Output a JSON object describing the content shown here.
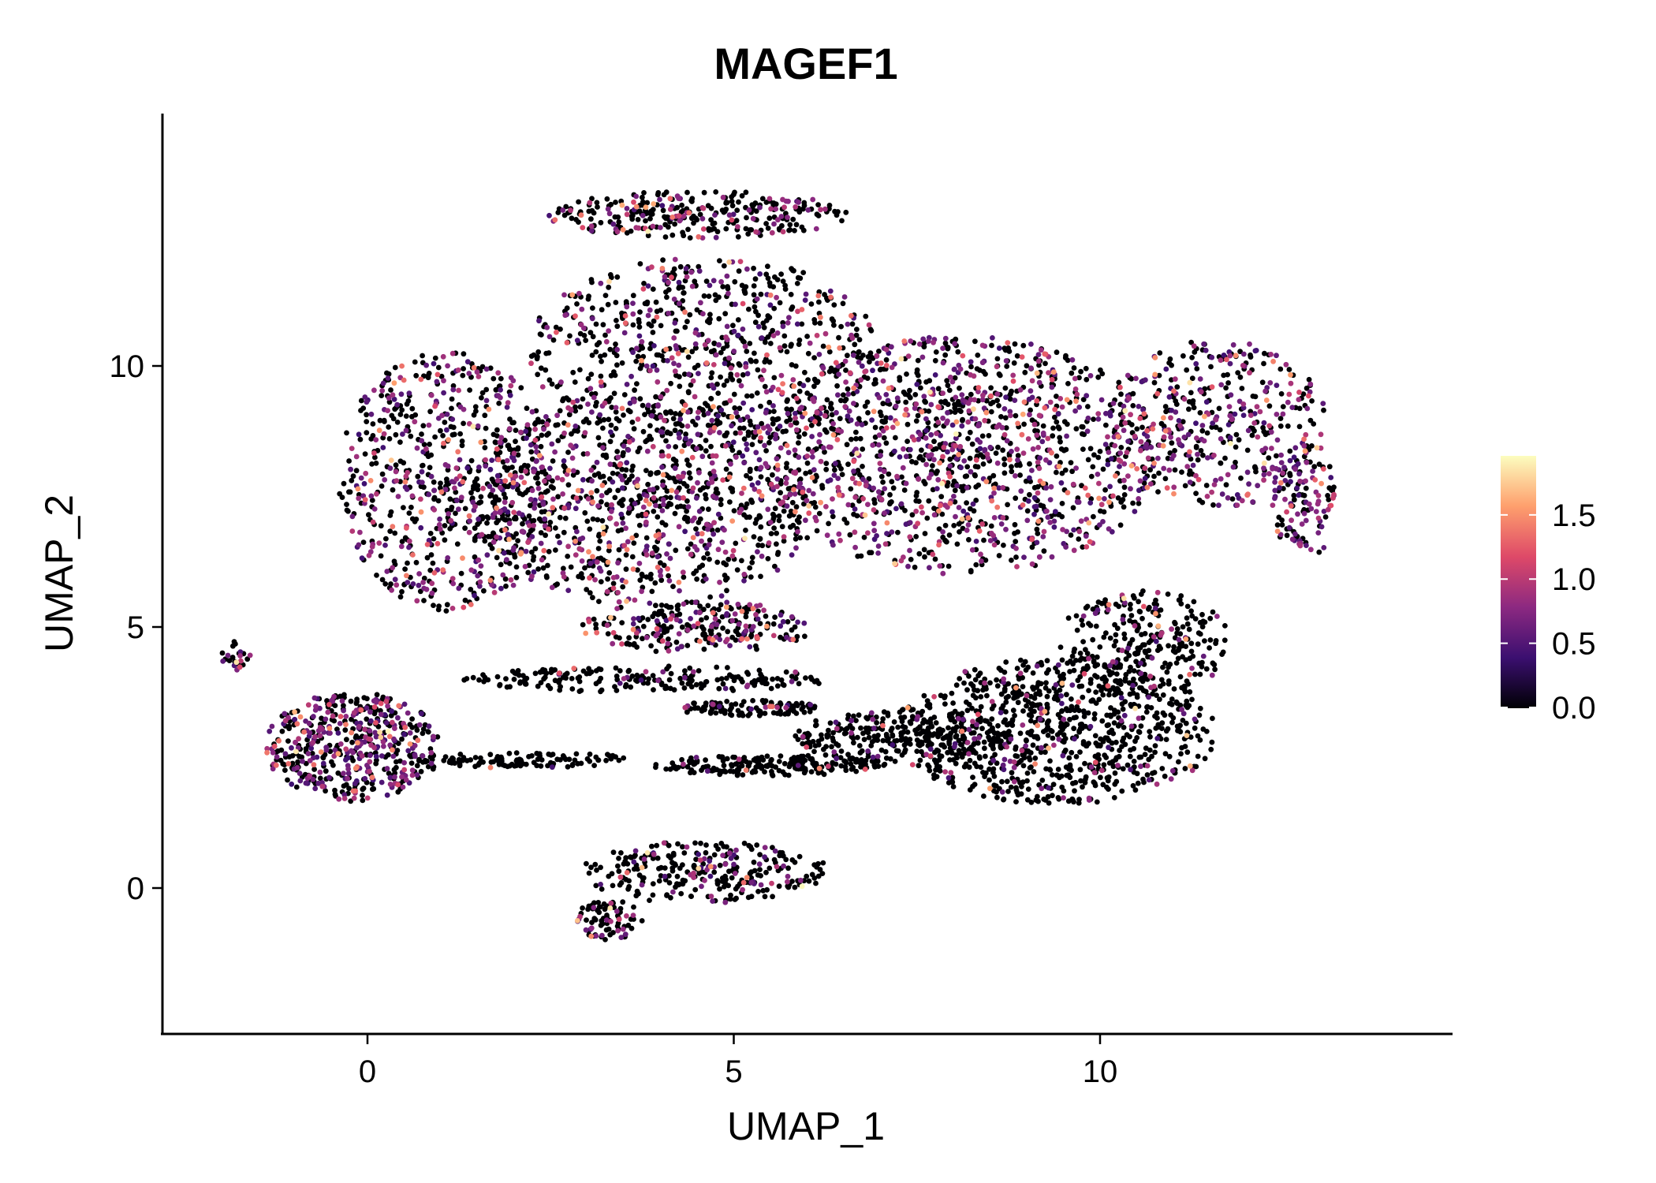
{
  "chart_data": {
    "type": "scatter",
    "title": "MAGEF1",
    "xlabel": "UMAP_1",
    "ylabel": "UMAP_2",
    "xlim": [
      -2.8,
      14.8
    ],
    "ylim": [
      -2.8,
      14.8
    ],
    "x_ticks": [
      {
        "value": 0,
        "label": "0"
      },
      {
        "value": 5,
        "label": "5"
      },
      {
        "value": 10,
        "label": "10"
      }
    ],
    "y_ticks": [
      {
        "value": 0,
        "label": "0"
      },
      {
        "value": 5,
        "label": "5"
      },
      {
        "value": 10,
        "label": "10"
      }
    ],
    "grid": false,
    "legend": {
      "placement": "right",
      "type": "colorbar",
      "range": [
        0,
        1.96
      ],
      "ticks": [
        {
          "value": 0.0,
          "label": "0.0"
        },
        {
          "value": 0.5,
          "label": "0.5"
        },
        {
          "value": 1.0,
          "label": "1.0"
        },
        {
          "value": 1.5,
          "label": "1.5"
        }
      ],
      "colormap": [
        "#000004",
        "#3b0f70",
        "#8c2981",
        "#de4968",
        "#fe9f6d",
        "#fcfdbf"
      ]
    },
    "point_generation_note": "clusters approximate cell density in UMAP coordinates",
    "seed": 12345,
    "clusters": [
      {
        "name": "left-lobe",
        "cx": 1.1,
        "cy": 7.8,
        "rx": 1.5,
        "ry": 2.5,
        "n": 700,
        "expr_frac": 0.4
      },
      {
        "name": "top-arc",
        "cx": 4.5,
        "cy": 12.9,
        "rx": 2.1,
        "ry": 0.45,
        "n": 300,
        "expr_frac": 0.3
      },
      {
        "name": "upper-middle",
        "cx": 4.6,
        "cy": 10.3,
        "rx": 2.4,
        "ry": 1.8,
        "n": 750,
        "expr_frac": 0.33
      },
      {
        "name": "center",
        "cx": 3.8,
        "cy": 7.4,
        "rx": 2.4,
        "ry": 2.0,
        "n": 1000,
        "expr_frac": 0.38
      },
      {
        "name": "right-center",
        "cx": 8.1,
        "cy": 8.3,
        "rx": 2.7,
        "ry": 2.3,
        "n": 1300,
        "expr_frac": 0.45
      },
      {
        "name": "far-right",
        "cx": 11.6,
        "cy": 8.9,
        "rx": 1.5,
        "ry": 1.6,
        "n": 420,
        "expr_frac": 0.48
      },
      {
        "name": "right-tip",
        "cx": 12.8,
        "cy": 7.4,
        "rx": 0.45,
        "ry": 1.1,
        "n": 120,
        "expr_frac": 0.5
      },
      {
        "name": "lower-middle",
        "cx": 4.5,
        "cy": 5.0,
        "rx": 1.6,
        "ry": 0.5,
        "n": 260,
        "expr_frac": 0.35
      },
      {
        "name": "bottom-right",
        "cx": 9.4,
        "cy": 3.0,
        "rx": 2.2,
        "ry": 1.4,
        "n": 900,
        "expr_frac": 0.12
      },
      {
        "name": "bottom-right-upper",
        "cx": 10.6,
        "cy": 4.7,
        "rx": 1.2,
        "ry": 1.0,
        "n": 280,
        "expr_frac": 0.12
      },
      {
        "name": "band-1",
        "cx": 3.8,
        "cy": 4.0,
        "rx": 2.5,
        "ry": 0.25,
        "n": 200,
        "expr_frac": 0.1
      },
      {
        "name": "band-2",
        "cx": 2.2,
        "cy": 2.45,
        "rx": 1.6,
        "ry": 0.15,
        "n": 110,
        "expr_frac": 0.05
      },
      {
        "name": "band-3",
        "cx": 5.5,
        "cy": 2.35,
        "rx": 1.6,
        "ry": 0.2,
        "n": 200,
        "expr_frac": 0.08
      },
      {
        "name": "band-4",
        "cx": 5.2,
        "cy": 3.45,
        "rx": 1.0,
        "ry": 0.15,
        "n": 110,
        "expr_frac": 0.15
      },
      {
        "name": "band-5",
        "cx": 7.3,
        "cy": 2.9,
        "rx": 1.5,
        "ry": 0.5,
        "n": 260,
        "expr_frac": 0.08
      },
      {
        "name": "left-island",
        "cx": -0.2,
        "cy": 2.7,
        "rx": 1.2,
        "ry": 1.05,
        "n": 520,
        "expr_frac": 0.5
      },
      {
        "name": "left-tail",
        "cx": -1.8,
        "cy": 4.45,
        "rx": 0.2,
        "ry": 0.3,
        "n": 25,
        "expr_frac": 0.4
      },
      {
        "name": "bottom-island",
        "cx": 4.6,
        "cy": 0.3,
        "rx": 1.7,
        "ry": 0.6,
        "n": 280,
        "expr_frac": 0.22
      },
      {
        "name": "bottom-island-tail",
        "cx": 3.3,
        "cy": -0.6,
        "rx": 0.45,
        "ry": 0.4,
        "n": 80,
        "expr_frac": 0.35
      }
    ]
  }
}
